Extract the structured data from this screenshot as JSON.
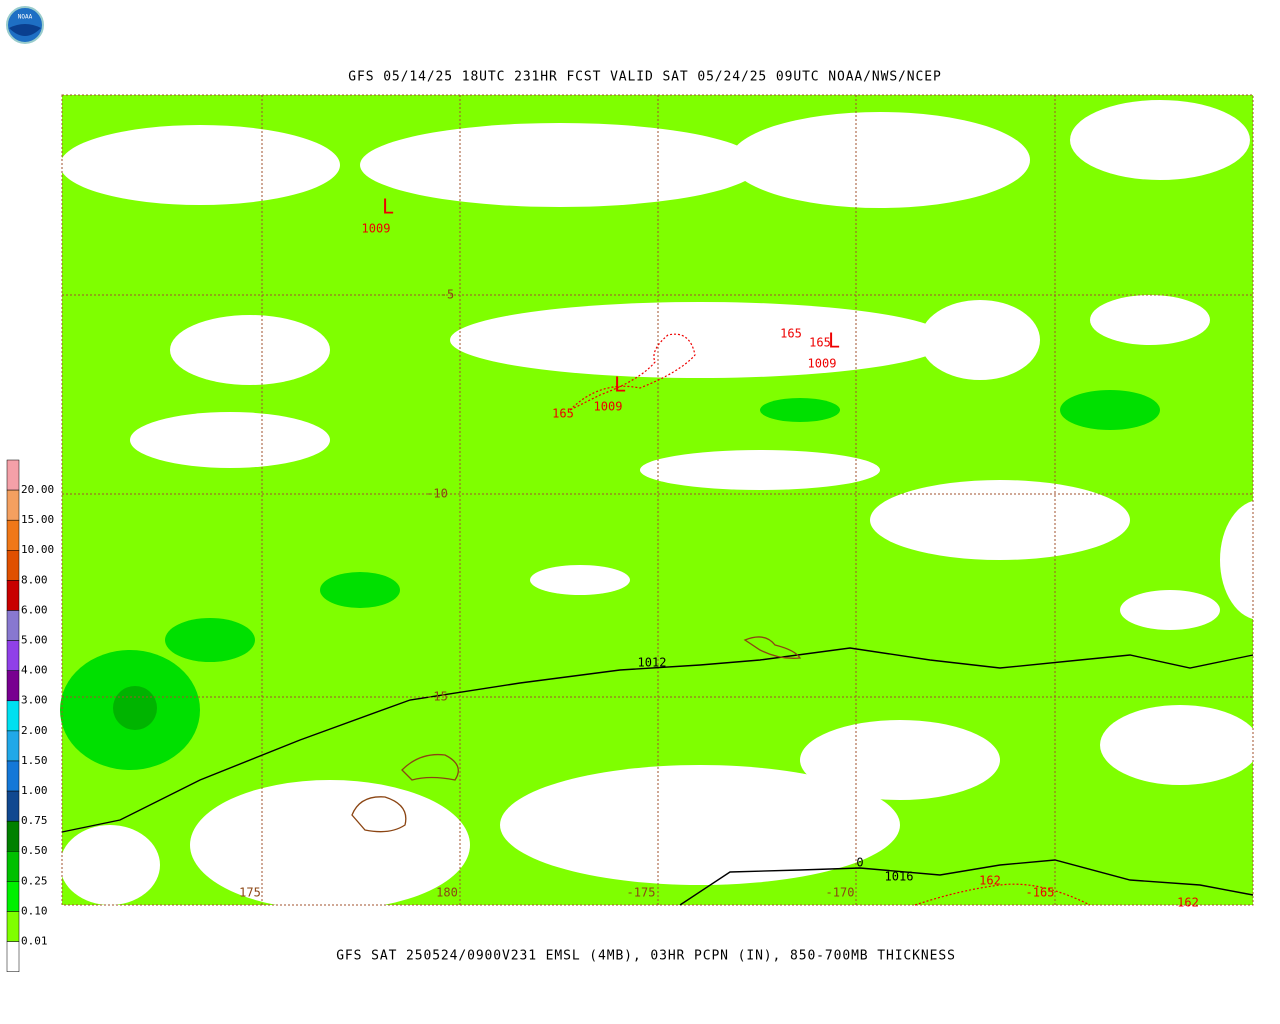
{
  "logo": "NOAA",
  "title": "GFS 05/14/25 18UTC 231HR FCST VALID SAT 05/24/25 09UTC NOAA/NWS/NCEP",
  "caption": "GFS SAT 250524/0900V231 EMSL (4MB), 03HR PCPN (IN), 850-700MB THICKNESS",
  "colorbar": {
    "labels": [
      "20.00",
      "15.00",
      "10.00",
      "8.00",
      "6.00",
      "5.00",
      "4.00",
      "3.00",
      "2.00",
      "1.50",
      "1.00",
      "0.75",
      "0.50",
      "0.25",
      "0.10",
      "0.01"
    ]
  },
  "lon_labels": [
    "175",
    "180",
    "-175",
    "-170"
  ],
  "lat_labels": [
    "-5",
    "-10",
    "-15"
  ],
  "lows": [
    "L",
    "L",
    "L"
  ],
  "contour_labels": [
    "1009",
    "1009",
    "1009",
    "165",
    "165",
    "165",
    "1012",
    "1016",
    "0",
    "162",
    "-165",
    "162"
  ]
}
